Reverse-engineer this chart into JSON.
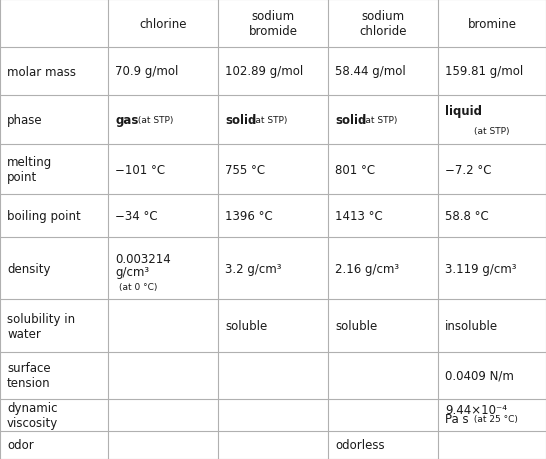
{
  "headers": [
    "",
    "chlorine",
    "sodium\nbromide",
    "sodium\nchloride",
    "bromine"
  ],
  "rows": [
    {
      "label": "molar mass",
      "cells": [
        "70.9 g/mol",
        "102.89 g/mol",
        "58.44 g/mol",
        "159.81 g/mol"
      ]
    },
    {
      "label": "phase",
      "cells": [
        "phase_gas",
        "phase_solid",
        "phase_solid2",
        "phase_liquid"
      ]
    },
    {
      "label": "melting\npoint",
      "cells": [
        "−101 °C",
        "755 °C",
        "801 °C",
        "−7.2 °C"
      ]
    },
    {
      "label": "boiling point",
      "cells": [
        "−34 °C",
        "1396 °C",
        "1413 °C",
        "58.8 °C"
      ]
    },
    {
      "label": "density",
      "cells": [
        "density_chlorine",
        "3.2 g/cm³",
        "2.16 g/cm³",
        "3.119 g/cm³"
      ]
    },
    {
      "label": "solubility in\nwater",
      "cells": [
        "",
        "soluble",
        "soluble",
        "insoluble"
      ]
    },
    {
      "label": "surface\ntension",
      "cells": [
        "",
        "",
        "",
        "0.0409 N/m"
      ]
    },
    {
      "label": "dynamic\nviscosity",
      "cells": [
        "",
        "",
        "",
        "visc_bromine"
      ]
    },
    {
      "label": "odor",
      "cells": [
        "",
        "",
        "odorless",
        ""
      ]
    }
  ],
  "background_color": "#ffffff",
  "border_color": "#b0b0b0",
  "text_color": "#1a1a1a",
  "main_font_size": 8.5,
  "small_font_size": 6.5,
  "header_font_size": 8.5
}
